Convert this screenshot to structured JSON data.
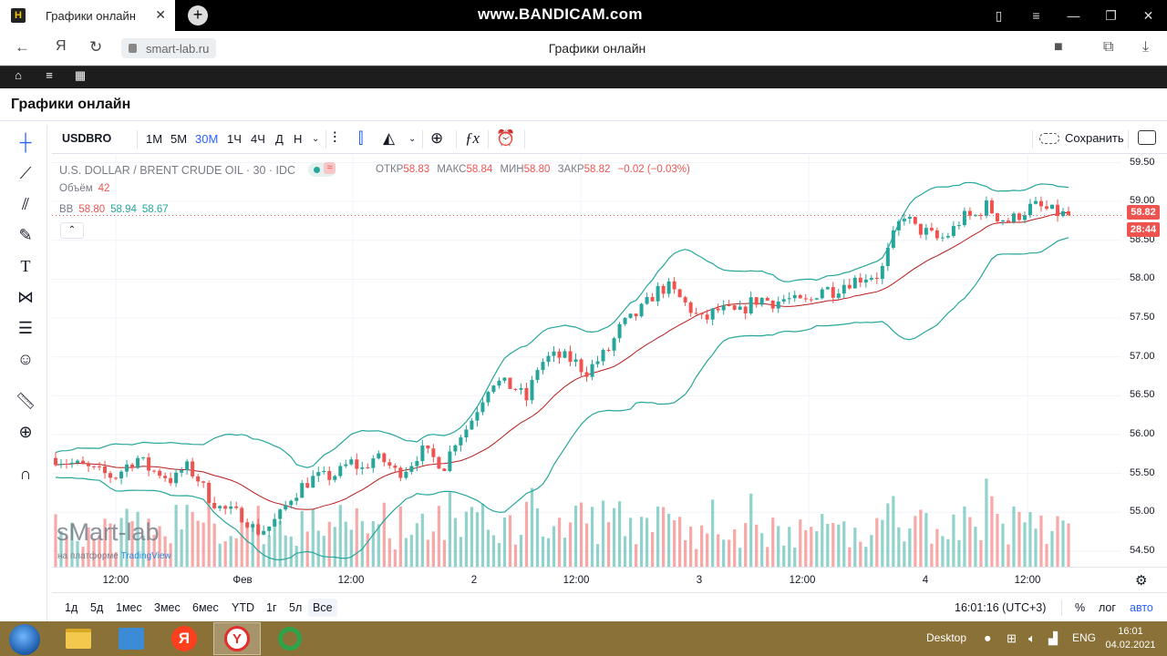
{
  "browser": {
    "tab_title": "Графики онлайн",
    "favicon_letter": "H",
    "new_tab": "+",
    "watermark": "www.BANDICAM.com",
    "url": "smart-lab.ru",
    "page_title": "Графики онлайн",
    "yandex_button": "Я"
  },
  "page": {
    "heading": "Графики онлайн"
  },
  "chart_toolbar": {
    "symbol": "USDBRO",
    "intervals": [
      "1М",
      "5М",
      "30М",
      "1Ч",
      "4Ч",
      "Д",
      "Н"
    ],
    "active_interval": "30М",
    "save_label": "Сохранить"
  },
  "legend": {
    "title": "U.S. DOLLAR / BRENT CRUDE OIL · 30 · IDC",
    "open_label": "ОТКР",
    "open": "58.83",
    "high_label": "МАКС",
    "high": "58.84",
    "low_label": "МИН",
    "low": "58.80",
    "close_label": "ЗАКР",
    "close": "58.82",
    "change": "−0.02 (−0.03%)",
    "volume_label": "Объём",
    "volume": "42",
    "bb_label": "BB",
    "bb_basis": "58.80",
    "bb_upper": "58.94",
    "bb_lower": "58.67",
    "collapse": "⌃"
  },
  "branding": {
    "name": "sMart-lab",
    "sub_prefix": "на платформе",
    "sub_platform": "TradingView"
  },
  "price_axis": {
    "ticks": [
      "59.50",
      "59.00",
      "58.50",
      "58.00",
      "57.50",
      "57.00",
      "56.50",
      "56.00",
      "55.50",
      "55.00",
      "54.50"
    ],
    "last_price": "58.82",
    "countdown": "28:44"
  },
  "time_axis": {
    "labels": [
      "12:00",
      "Фев",
      "12:00",
      "2",
      "12:00",
      "3",
      "12:00",
      "4",
      "12:00"
    ]
  },
  "bottom_bar": {
    "ranges": [
      "1д",
      "5д",
      "1мес",
      "3мес",
      "6мес",
      "YTD",
      "1г",
      "5л",
      "Все"
    ],
    "active_range": "Все",
    "clock": "16:01:16 (UTC+3)",
    "percent": "%",
    "log": "лог",
    "auto": "авто"
  },
  "taskbar": {
    "desktop": "Desktop",
    "lang": "ENG",
    "time": "16:01",
    "date": "04.02.2021"
  },
  "colors": {
    "up": "#26a69a",
    "down": "#ef5350",
    "bb_band": "#26a69a",
    "bb_basis": "#b71c1c",
    "accent": "#2962ff"
  },
  "chart_data": {
    "type": "candlestick",
    "series_note": "",
    "ylim": [
      54.3,
      59.6
    ],
    "close_path": [
      55.7,
      55.65,
      55.6,
      55.55,
      55.5,
      55.45,
      55.6,
      55.7,
      55.55,
      55.5,
      55.4,
      55.6,
      55.45,
      55.2,
      55.05,
      55.0,
      54.95,
      54.75,
      54.8,
      54.95,
      55.2,
      55.35,
      55.45,
      55.45,
      55.5,
      55.65,
      55.55,
      55.7,
      55.65,
      55.5,
      55.6,
      55.8,
      55.7,
      55.6,
      55.95,
      56.1,
      56.4,
      56.7,
      56.65,
      56.6,
      56.45,
      56.9,
      57.0,
      57.0,
      56.95,
      56.8,
      56.95,
      57.1,
      57.4,
      57.5,
      57.65,
      57.85,
      57.9,
      57.75,
      57.6,
      57.45,
      57.6,
      57.6,
      57.55,
      57.7,
      57.75,
      57.7,
      57.75,
      57.7,
      57.7,
      57.9,
      57.85,
      57.95,
      58.0,
      58.05,
      58.05,
      58.5,
      58.85,
      58.65,
      58.6,
      58.5,
      58.6,
      58.8,
      58.8,
      58.95,
      58.8,
      58.75,
      58.85,
      58.95,
      58.9,
      58.85,
      58.82
    ],
    "volume_ylim": [
      0,
      140
    ]
  }
}
